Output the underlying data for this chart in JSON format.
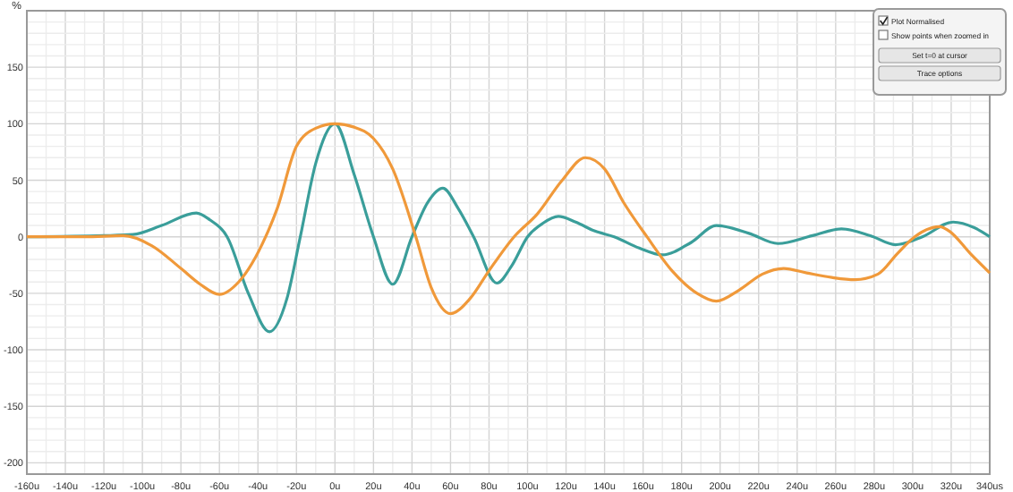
{
  "chart_data": {
    "type": "line",
    "ylabel": "%",
    "xlim": [
      -160,
      340
    ],
    "ylim": [
      -210,
      200
    ],
    "xticks": [
      {
        "value": -160,
        "label": "-160u"
      },
      {
        "value": -150,
        "label": null
      },
      {
        "value": -140,
        "label": "-140u"
      },
      {
        "value": -130,
        "label": null
      },
      {
        "value": -120,
        "label": "-120u"
      },
      {
        "value": -110,
        "label": null
      },
      {
        "value": -100,
        "label": "-100u"
      },
      {
        "value": -90,
        "label": null
      },
      {
        "value": -80,
        "label": "-80u"
      },
      {
        "value": -70,
        "label": null
      },
      {
        "value": -60,
        "label": "-60u"
      },
      {
        "value": -50,
        "label": null
      },
      {
        "value": -40,
        "label": "-40u"
      },
      {
        "value": -30,
        "label": null
      },
      {
        "value": -20,
        "label": "-20u"
      },
      {
        "value": -10,
        "label": null
      },
      {
        "value": 0,
        "label": "0u"
      },
      {
        "value": 10,
        "label": null
      },
      {
        "value": 20,
        "label": "20u"
      },
      {
        "value": 30,
        "label": null
      },
      {
        "value": 40,
        "label": "40u"
      },
      {
        "value": 50,
        "label": null
      },
      {
        "value": 60,
        "label": "60u"
      },
      {
        "value": 70,
        "label": null
      },
      {
        "value": 80,
        "label": "80u"
      },
      {
        "value": 90,
        "label": null
      },
      {
        "value": 100,
        "label": "100u"
      },
      {
        "value": 110,
        "label": null
      },
      {
        "value": 120,
        "label": "120u"
      },
      {
        "value": 130,
        "label": null
      },
      {
        "value": 140,
        "label": "140u"
      },
      {
        "value": 150,
        "label": null
      },
      {
        "value": 160,
        "label": "160u"
      },
      {
        "value": 170,
        "label": null
      },
      {
        "value": 180,
        "label": "180u"
      },
      {
        "value": 190,
        "label": null
      },
      {
        "value": 200,
        "label": "200u"
      },
      {
        "value": 210,
        "label": null
      },
      {
        "value": 220,
        "label": "220u"
      },
      {
        "value": 230,
        "label": null
      },
      {
        "value": 240,
        "label": "240u"
      },
      {
        "value": 250,
        "label": null
      },
      {
        "value": 260,
        "label": "260u"
      },
      {
        "value": 270,
        "label": null
      },
      {
        "value": 280,
        "label": "280u"
      },
      {
        "value": 290,
        "label": null
      },
      {
        "value": 300,
        "label": "300u"
      },
      {
        "value": 310,
        "label": null
      },
      {
        "value": 320,
        "label": "320u"
      },
      {
        "value": 330,
        "label": null
      },
      {
        "value": 340,
        "label": "340us"
      }
    ],
    "yticks": [
      {
        "value": -200,
        "label": "-200"
      },
      {
        "value": -190,
        "label": null
      },
      {
        "value": -180,
        "label": null
      },
      {
        "value": -170,
        "label": null
      },
      {
        "value": -160,
        "label": null
      },
      {
        "value": -150,
        "label": "-150"
      },
      {
        "value": -140,
        "label": null
      },
      {
        "value": -130,
        "label": null
      },
      {
        "value": -120,
        "label": null
      },
      {
        "value": -110,
        "label": null
      },
      {
        "value": -100,
        "label": "-100"
      },
      {
        "value": -90,
        "label": null
      },
      {
        "value": -80,
        "label": null
      },
      {
        "value": -70,
        "label": null
      },
      {
        "value": -60,
        "label": null
      },
      {
        "value": -50,
        "label": "-50"
      },
      {
        "value": -40,
        "label": null
      },
      {
        "value": -30,
        "label": null
      },
      {
        "value": -20,
        "label": null
      },
      {
        "value": -10,
        "label": null
      },
      {
        "value": 0,
        "label": "0"
      },
      {
        "value": 10,
        "label": null
      },
      {
        "value": 20,
        "label": null
      },
      {
        "value": 30,
        "label": null
      },
      {
        "value": 40,
        "label": null
      },
      {
        "value": 50,
        "label": "50"
      },
      {
        "value": 60,
        "label": null
      },
      {
        "value": 70,
        "label": null
      },
      {
        "value": 80,
        "label": null
      },
      {
        "value": 90,
        "label": null
      },
      {
        "value": 100,
        "label": "100"
      },
      {
        "value": 110,
        "label": null
      },
      {
        "value": 120,
        "label": null
      },
      {
        "value": 130,
        "label": null
      },
      {
        "value": 140,
        "label": null
      },
      {
        "value": 150,
        "label": "150"
      },
      {
        "value": 160,
        "label": null
      },
      {
        "value": 170,
        "label": null
      },
      {
        "value": 180,
        "label": null
      },
      {
        "value": 190,
        "label": null
      }
    ],
    "grid": true,
    "marker": "none",
    "line_style": "solid",
    "annotations": [
      "Plot Normalised",
      "Show points when zoomed in",
      "Set t=0 at cursor",
      "Trace options"
    ],
    "series": [
      {
        "color": "#3a9e9a",
        "x": [
          -160,
          -120,
          -105,
          -90,
          -72,
          -65,
          -56,
          -45,
          -34,
          -25,
          -18,
          -10,
          0,
          10,
          20,
          30,
          40,
          48,
          56,
          64,
          72,
          84,
          92,
          100,
          108,
          116,
          125,
          135,
          145,
          158,
          170,
          185,
          198,
          215,
          230,
          248,
          263,
          278,
          291,
          305,
          321,
          332,
          340
        ],
        "values": [
          0,
          1,
          2,
          10,
          21,
          15,
          0,
          -50,
          -84,
          -55,
          0,
          65,
          100,
          55,
          0,
          -42,
          0,
          30,
          43,
          25,
          0,
          -41,
          -25,
          0,
          12,
          18,
          13,
          5,
          0,
          -10,
          -16,
          -5,
          10,
          3,
          -6,
          1,
          7,
          1,
          -7,
          0,
          13,
          8,
          0
        ]
      },
      {
        "color": "#f0993a",
        "x": [
          -160,
          -130,
          -110,
          -95,
          -80,
          -70,
          -60,
          -50,
          -36,
          -30,
          -20,
          -10,
          0,
          10,
          20,
          30,
          42,
          50,
          60,
          70,
          80,
          93,
          105,
          118,
          130,
          140,
          150,
          162,
          175,
          188,
          198,
          210,
          222,
          233,
          245,
          258,
          270,
          282,
          292,
          301,
          314,
          319,
          330,
          340
        ],
        "values": [
          0,
          0,
          1,
          -8,
          -28,
          -42,
          -51,
          -40,
          0,
          25,
          80,
          96,
          100,
          97,
          87,
          60,
          0,
          -45,
          -68,
          -55,
          -30,
          0,
          20,
          50,
          70,
          60,
          30,
          0,
          -30,
          -50,
          -57,
          -47,
          -33,
          -28,
          -32,
          -36,
          -38,
          -33,
          -15,
          0,
          9,
          5,
          -15,
          -32
        ]
      }
    ]
  }
}
